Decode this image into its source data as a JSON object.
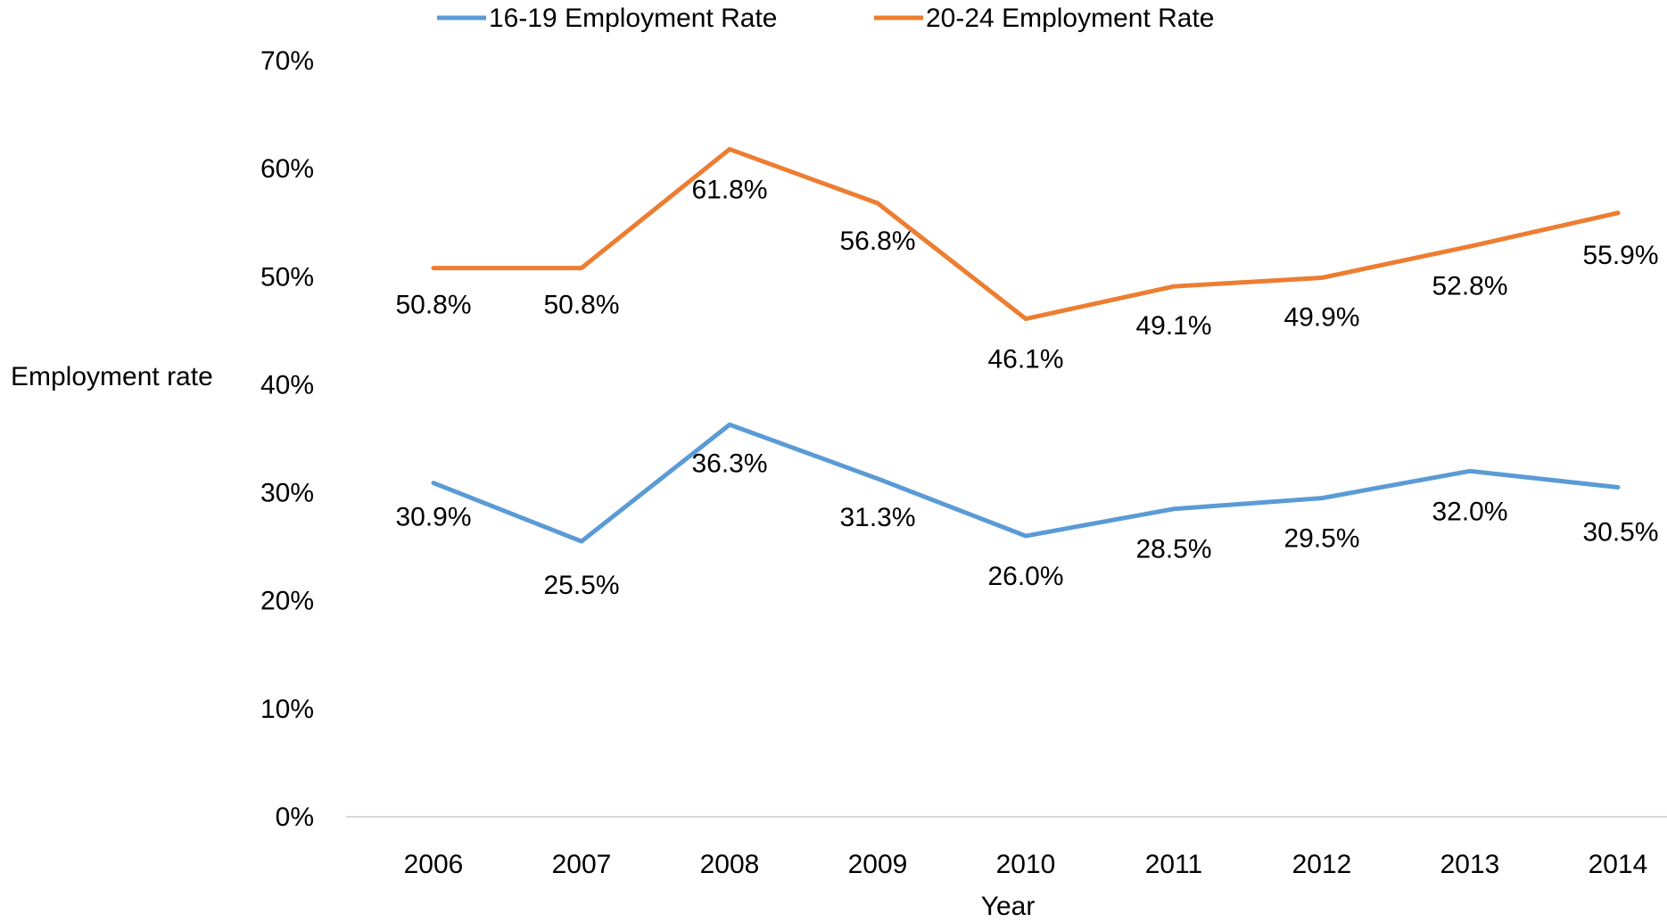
{
  "chart_data": {
    "type": "line",
    "title": "",
    "xlabel": "Year",
    "ylabel": "Employment rate",
    "categories": [
      "2006",
      "2007",
      "2008",
      "2009",
      "2010",
      "2011",
      "2012",
      "2013",
      "2014"
    ],
    "ylim": [
      0,
      70
    ],
    "yticks": [
      0,
      10,
      20,
      30,
      40,
      50,
      60,
      70
    ],
    "ytick_labels": [
      "0%",
      "10%",
      "20%",
      "30%",
      "40%",
      "50%",
      "60%",
      "70%"
    ],
    "grid": false,
    "legend_position": "top",
    "series": [
      {
        "name": "16-19 Employment Rate",
        "color": "#5B9BD5",
        "values": [
          30.9,
          25.5,
          36.3,
          31.3,
          26.0,
          28.5,
          29.5,
          32.0,
          30.5
        ],
        "labels": [
          "30.9%",
          "25.5%",
          "36.3%",
          "31.3%",
          "26.0%",
          "28.5%",
          "29.5%",
          "32.0%",
          "30.5%"
        ]
      },
      {
        "name": "20-24 Employment Rate",
        "color": "#ED7D31",
        "values": [
          50.8,
          50.8,
          61.8,
          56.8,
          46.1,
          49.1,
          49.9,
          52.8,
          55.9
        ],
        "labels": [
          "50.8%",
          "50.8%",
          "61.8%",
          "56.8%",
          "46.1%",
          "49.1%",
          "49.9%",
          "52.8%",
          "55.9%"
        ]
      }
    ]
  }
}
